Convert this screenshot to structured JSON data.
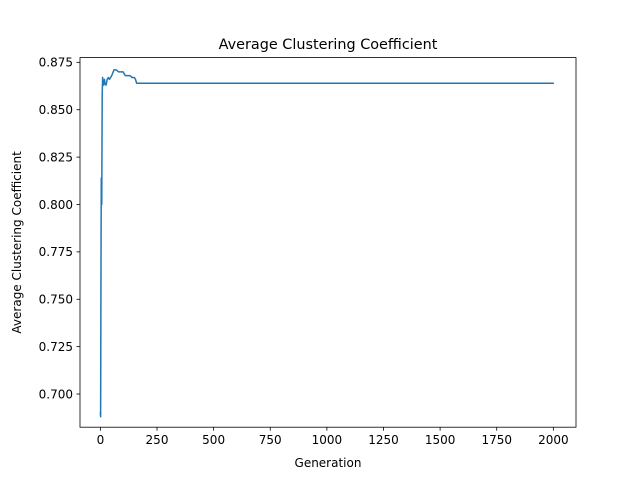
{
  "chart_data": {
    "type": "line",
    "title": "Average Clustering Coefficient",
    "xlabel": "Generation",
    "ylabel": "Average Clustering Coefficient",
    "xlim": [
      -90,
      2100
    ],
    "ylim": [
      0.6825,
      0.8775
    ],
    "xticks": [
      0,
      250,
      500,
      750,
      1000,
      1250,
      1500,
      1750,
      2000
    ],
    "yticks": [
      0.7,
      0.725,
      0.75,
      0.775,
      0.8,
      0.825,
      0.85,
      0.875
    ],
    "xtick_labels": [
      "0",
      "250",
      "500",
      "750",
      "1000",
      "1250",
      "1500",
      "1750",
      "2000"
    ],
    "ytick_labels": [
      "0.700",
      "0.725",
      "0.750",
      "0.775",
      "0.800",
      "0.825",
      "0.850",
      "0.875"
    ],
    "grid": false,
    "legend": "none",
    "line_color": "#1f77b4",
    "series": [
      {
        "x": [
          0,
          1,
          2,
          3,
          4,
          5,
          6,
          8,
          10,
          12,
          15,
          18,
          20,
          25,
          30,
          35,
          40,
          50,
          60,
          70,
          80,
          90,
          100,
          110,
          120,
          130,
          140,
          150,
          155,
          160,
          500,
          1000,
          1500,
          1999
        ],
        "y": [
          0.69,
          0.688,
          0.735,
          0.78,
          0.814,
          0.812,
          0.8,
          0.858,
          0.867,
          0.864,
          0.863,
          0.866,
          0.864,
          0.863,
          0.866,
          0.867,
          0.866,
          0.868,
          0.871,
          0.871,
          0.87,
          0.87,
          0.87,
          0.868,
          0.868,
          0.868,
          0.867,
          0.867,
          0.866,
          0.864,
          0.864,
          0.864,
          0.864,
          0.864
        ]
      }
    ]
  }
}
